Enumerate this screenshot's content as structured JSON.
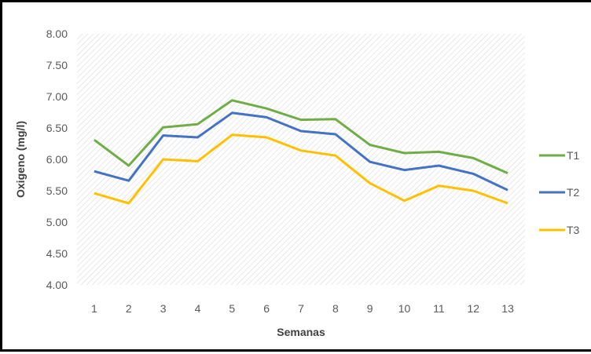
{
  "chart_data": {
    "type": "line",
    "title": "",
    "xlabel": "Semanas",
    "ylabel": "Oxigeno (mg/l)",
    "categories": [
      "1",
      "2",
      "3",
      "4",
      "5",
      "6",
      "7",
      "8",
      "9",
      "10",
      "11",
      "12",
      "13"
    ],
    "ylim": [
      4.0,
      8.0
    ],
    "yticks": [
      "4.00",
      "4.50",
      "5.00",
      "5.50",
      "6.00",
      "6.50",
      "7.00",
      "7.50",
      "8.00"
    ],
    "grid": "hatched plot area",
    "legend_position": "right",
    "series": [
      {
        "name": "T1",
        "color": "#70ad47",
        "values": [
          6.31,
          5.9,
          6.51,
          6.56,
          6.94,
          6.81,
          6.63,
          6.64,
          6.23,
          6.1,
          6.12,
          6.02,
          5.78
        ]
      },
      {
        "name": "T2",
        "color": "#4472c4",
        "values": [
          5.81,
          5.66,
          6.38,
          6.35,
          6.74,
          6.67,
          6.45,
          6.4,
          5.96,
          5.83,
          5.9,
          5.77,
          5.51
        ]
      },
      {
        "name": "T3",
        "color": "#ffc000",
        "values": [
          5.46,
          5.3,
          6.0,
          5.97,
          6.39,
          6.35,
          6.14,
          6.06,
          5.62,
          5.34,
          5.58,
          5.5,
          5.3
        ]
      }
    ]
  }
}
